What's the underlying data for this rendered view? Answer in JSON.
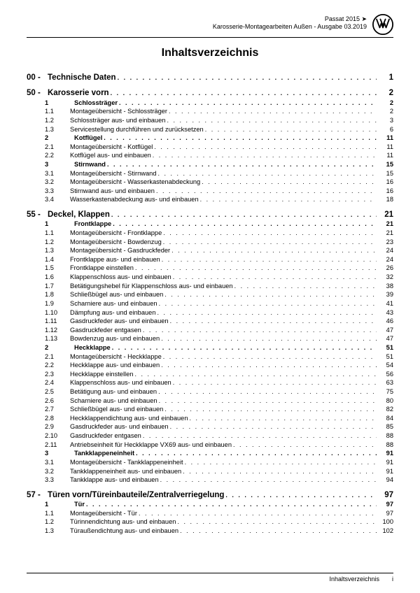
{
  "header": {
    "line1": "Passat 2015 ➤",
    "line2": "Karosserie-Montagearbeiten Außen - Ausgabe 03.2019"
  },
  "title": "Inhaltsverzeichnis",
  "footer": {
    "label": "Inhaltsverzeichnis",
    "page": "i"
  },
  "sections": [
    {
      "type": "chapter",
      "num": "00 -",
      "label": "Technische Daten",
      "page": "1"
    },
    {
      "type": "chapter",
      "num": "50 -",
      "label": "Karosserie vorn",
      "page": "2"
    },
    {
      "type": "sub",
      "bold": true,
      "num": "1",
      "label": "Schlossträger",
      "page": "2"
    },
    {
      "type": "subsub",
      "num": "1.1",
      "label": "Montageübersicht - Schlossträger",
      "page": "2"
    },
    {
      "type": "subsub",
      "num": "1.2",
      "label": "Schlossträger aus- und einbauen",
      "page": "3"
    },
    {
      "type": "subsub",
      "num": "1.3",
      "label": "Servicestellung durchführen und zurücksetzen",
      "page": "6"
    },
    {
      "type": "sub",
      "bold": true,
      "num": "2",
      "label": "Kotflügel",
      "page": "11"
    },
    {
      "type": "subsub",
      "num": "2.1",
      "label": "Montageübersicht - Kotflügel",
      "page": "11"
    },
    {
      "type": "subsub",
      "num": "2.2",
      "label": "Kotflügel aus- und einbauen",
      "page": "11"
    },
    {
      "type": "sub",
      "bold": true,
      "num": "3",
      "label": "Stirnwand",
      "page": "15"
    },
    {
      "type": "subsub",
      "num": "3.1",
      "label": "Montageübersicht - Stirnwand",
      "page": "15"
    },
    {
      "type": "subsub",
      "num": "3.2",
      "label": "Montageübersicht - Wasserkastenabdeckung",
      "page": "16"
    },
    {
      "type": "subsub",
      "num": "3.3",
      "label": "Stirnwand aus- und einbauen",
      "page": "16"
    },
    {
      "type": "subsub",
      "num": "3.4",
      "label": "Wasserkastenabdeckung aus- und einbauen",
      "page": "18"
    },
    {
      "type": "chapter",
      "num": "55 -",
      "label": "Deckel, Klappen",
      "page": "21"
    },
    {
      "type": "sub",
      "bold": true,
      "num": "1",
      "label": "Frontklappe",
      "page": "21"
    },
    {
      "type": "subsub",
      "num": "1.1",
      "label": "Montageübersicht - Frontklappe",
      "page": "21"
    },
    {
      "type": "subsub",
      "num": "1.2",
      "label": "Montageübersicht - Bowdenzug",
      "page": "23"
    },
    {
      "type": "subsub",
      "num": "1.3",
      "label": "Montageübersicht - Gasdruckfeder",
      "page": "24"
    },
    {
      "type": "subsub",
      "num": "1.4",
      "label": "Frontklappe aus- und einbauen",
      "page": "24"
    },
    {
      "type": "subsub",
      "num": "1.5",
      "label": "Frontklappe einstellen",
      "page": "26"
    },
    {
      "type": "subsub",
      "num": "1.6",
      "label": "Klappenschloss aus- und einbauen",
      "page": "32"
    },
    {
      "type": "subsub",
      "num": "1.7",
      "label": "Betätigungshebel für Klappenschloss aus- und einbauen",
      "page": "38"
    },
    {
      "type": "subsub",
      "num": "1.8",
      "label": "Schließbügel aus- und einbauen",
      "page": "39"
    },
    {
      "type": "subsub",
      "num": "1.9",
      "label": "Scharniere aus- und einbauen",
      "page": "41"
    },
    {
      "type": "subsub",
      "num": "1.10",
      "label": "Dämpfung aus- und einbauen",
      "page": "43"
    },
    {
      "type": "subsub",
      "num": "1.11",
      "label": "Gasdruckfeder aus- und einbauen",
      "page": "46"
    },
    {
      "type": "subsub",
      "num": "1.12",
      "label": "Gasdruckfeder entgasen",
      "page": "47"
    },
    {
      "type": "subsub",
      "num": "1.13",
      "label": "Bowdenzug aus- und einbauen",
      "page": "47"
    },
    {
      "type": "sub",
      "bold": true,
      "num": "2",
      "label": "Heckklappe",
      "page": "51"
    },
    {
      "type": "subsub",
      "num": "2.1",
      "label": "Montageübersicht - Heckklappe",
      "page": "51"
    },
    {
      "type": "subsub",
      "num": "2.2",
      "label": "Heckklappe aus- und einbauen",
      "page": "54"
    },
    {
      "type": "subsub",
      "num": "2.3",
      "label": "Heckklappe einstellen",
      "page": "56"
    },
    {
      "type": "subsub",
      "num": "2.4",
      "label": "Klappenschloss aus- und einbauen",
      "page": "63"
    },
    {
      "type": "subsub",
      "num": "2.5",
      "label": "Betätigung aus- und einbauen",
      "page": "75"
    },
    {
      "type": "subsub",
      "num": "2.6",
      "label": "Scharniere aus- und einbauen",
      "page": "80"
    },
    {
      "type": "subsub",
      "num": "2.7",
      "label": "Schließbügel aus- und einbauen",
      "page": "82"
    },
    {
      "type": "subsub",
      "num": "2.8",
      "label": "Heckklappendichtung aus- und einbauen",
      "page": "84"
    },
    {
      "type": "subsub",
      "num": "2.9",
      "label": "Gasdruckfeder aus- und einbauen",
      "page": "85"
    },
    {
      "type": "subsub",
      "num": "2.10",
      "label": "Gasdruckfeder entgasen",
      "page": "88"
    },
    {
      "type": "subsub",
      "num": "2.11",
      "label": "Antriebseinheit für Heckklappe VX69 aus- und einbauen",
      "page": "88"
    },
    {
      "type": "sub",
      "bold": true,
      "num": "3",
      "label": "Tankklappeneinheit",
      "page": "91"
    },
    {
      "type": "subsub",
      "num": "3.1",
      "label": "Montageübersicht - Tankklappeneinheit",
      "page": "91"
    },
    {
      "type": "subsub",
      "num": "3.2",
      "label": "Tankklappeneinheit aus- und einbauen",
      "page": "91"
    },
    {
      "type": "subsub",
      "num": "3.3",
      "label": "Tankklappe aus- und einbauen",
      "page": "94"
    },
    {
      "type": "chapter",
      "num": "57 -",
      "label": "Türen vorn/Türeinbauteile/Zentralverriegelung",
      "page": "97"
    },
    {
      "type": "sub",
      "bold": true,
      "num": "1",
      "label": "Tür",
      "page": "97"
    },
    {
      "type": "subsub",
      "num": "1.1",
      "label": "Montageübersicht - Tür",
      "page": "97"
    },
    {
      "type": "subsub",
      "num": "1.2",
      "label": "Türinnendichtung aus- und einbauen",
      "page": "100"
    },
    {
      "type": "subsub",
      "num": "1.3",
      "label": "Türaußendichtung aus- und einbauen",
      "page": "102"
    }
  ]
}
